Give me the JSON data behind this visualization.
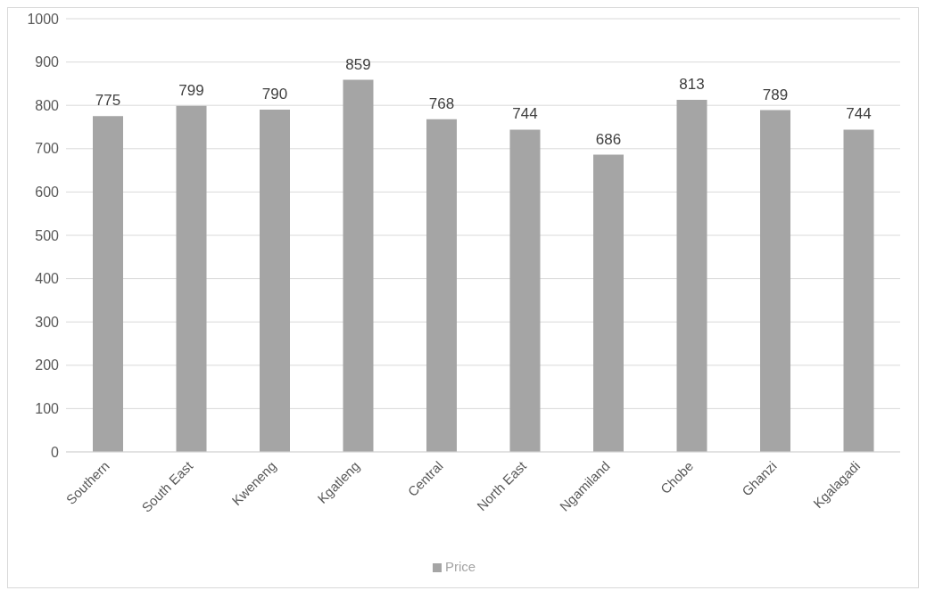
{
  "chart_data": {
    "type": "bar",
    "categories": [
      "Southern",
      "South East",
      "Kweneng",
      "Kgatleng",
      "Central",
      "North East",
      "Ngamiland",
      "Chobe",
      "Ghanzi",
      "Kgalagadi"
    ],
    "series": [
      {
        "name": "Price",
        "color": "#a5a5a5",
        "values": [
          775,
          799,
          790,
          859,
          768,
          744,
          686,
          813,
          789,
          744
        ]
      }
    ],
    "ylim": [
      0,
      1000
    ],
    "yticks": [
      0,
      100,
      200,
      300,
      400,
      500,
      600,
      700,
      800,
      900,
      1000
    ],
    "grid": "y",
    "legend": "bottom",
    "data_labels": true
  }
}
